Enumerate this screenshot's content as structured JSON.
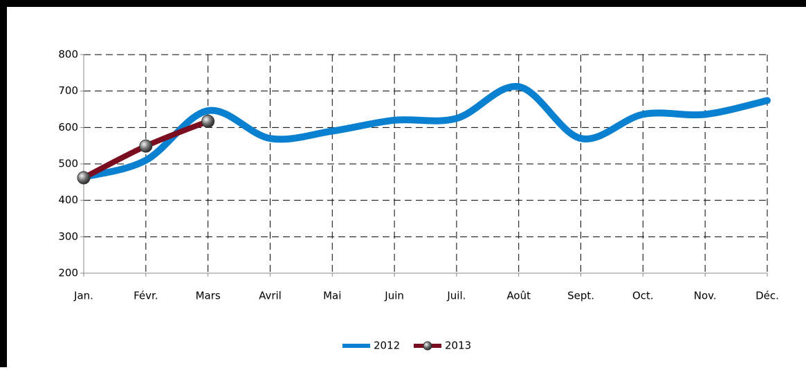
{
  "chart_data": {
    "type": "line",
    "smooth": true,
    "categories": [
      "Jan.",
      "Févr.",
      "Mars",
      "Avril",
      "Mai",
      "Juin",
      "Juil.",
      "Août",
      "Sept.",
      "Oct.",
      "Nov.",
      "Déc."
    ],
    "series": [
      {
        "name": "2012",
        "color": "#0a80d0",
        "values": [
          464,
          510,
          646,
          570,
          590,
          620,
          625,
          712,
          570,
          636,
          636,
          674
        ]
      },
      {
        "name": "2013",
        "color": "#7a0e20",
        "marker": true,
        "values": [
          462,
          549,
          617,
          null,
          null,
          null,
          null,
          null,
          null,
          null,
          null,
          null
        ]
      }
    ],
    "ylim": [
      200,
      800
    ],
    "yticks": [
      200,
      300,
      400,
      500,
      600,
      700,
      800
    ],
    "grid": true,
    "legend": "bottom"
  }
}
